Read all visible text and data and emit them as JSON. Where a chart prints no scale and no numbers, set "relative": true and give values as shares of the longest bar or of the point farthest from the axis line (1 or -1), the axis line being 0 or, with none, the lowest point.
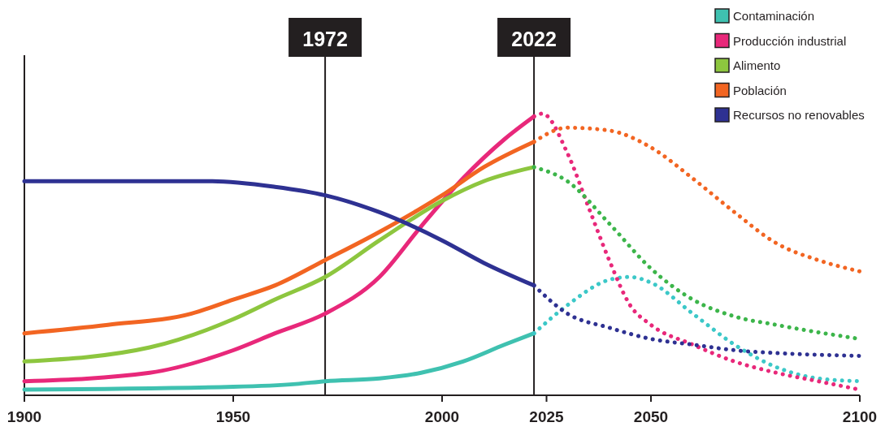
{
  "chart_data": {
    "type": "line",
    "relative": true,
    "xlim": [
      1900,
      2100
    ],
    "xticks": [
      1900,
      1950,
      2000,
      2025,
      2050,
      2100
    ],
    "legend": "top right",
    "grid": false,
    "ref_lines": [
      {
        "axis": "x",
        "value": 1972,
        "label": "1972",
        "color": "#231f20"
      },
      {
        "axis": "x",
        "value": 2022,
        "label": "2022",
        "color": "#231f20"
      }
    ],
    "series": [
      {
        "name": "Contaminación",
        "color": "#3fc1b0",
        "line_style": "solid",
        "x": [
          1900,
          1950,
          1965,
          1972,
          1985,
          1995,
          2005,
          2015,
          2022
        ],
        "values": [
          0.02,
          0.03,
          0.04,
          0.05,
          0.06,
          0.08,
          0.12,
          0.18,
          0.22
        ]
      },
      {
        "name": "Producción industrial",
        "color": "#e8287a",
        "line_style": "solid",
        "x": [
          1900,
          1930,
          1950,
          1960,
          1972,
          1985,
          1995,
          2005,
          2015,
          2022
        ],
        "values": [
          0.05,
          0.08,
          0.16,
          0.22,
          0.29,
          0.42,
          0.6,
          0.77,
          0.91,
          0.99
        ]
      },
      {
        "name": "Alimento",
        "color": "#8dc63f",
        "line_style": "solid",
        "x": [
          1900,
          1930,
          1950,
          1960,
          1972,
          1985,
          2000,
          2010,
          2022
        ],
        "values": [
          0.12,
          0.17,
          0.27,
          0.34,
          0.42,
          0.55,
          0.69,
          0.76,
          0.81
        ]
      },
      {
        "name": "Población",
        "color": "#f26522",
        "line_style": "solid",
        "x": [
          1900,
          1920,
          1940,
          1950,
          1960,
          1972,
          1985,
          2000,
          2010,
          2022
        ],
        "values": [
          0.22,
          0.25,
          0.29,
          0.34,
          0.39,
          0.48,
          0.58,
          0.71,
          0.81,
          0.9
        ]
      },
      {
        "name": "Recursos no renovables",
        "color": "#2e3192",
        "line_style": "solid",
        "x": [
          1900,
          1930,
          1945,
          1960,
          1972,
          1985,
          2000,
          2010,
          2022
        ],
        "values": [
          0.76,
          0.76,
          0.76,
          0.74,
          0.71,
          0.65,
          0.55,
          0.47,
          0.39
        ]
      },
      {
        "color": "#3cc8c8",
        "line_style": "dotted",
        "x": [
          2022,
          2030,
          2040,
          2045,
          2050,
          2060,
          2070,
          2080,
          2090,
          2100
        ],
        "values": [
          0.22,
          0.32,
          0.41,
          0.42,
          0.4,
          0.29,
          0.18,
          0.1,
          0.06,
          0.05
        ]
      },
      {
        "color": "#e8287a",
        "line_style": "dotted",
        "x": [
          2022,
          2024,
          2030,
          2035,
          2040,
          2045,
          2050,
          2060,
          2070,
          2080,
          2090,
          2100
        ],
        "values": [
          0.99,
          1,
          0.86,
          0.67,
          0.48,
          0.32,
          0.25,
          0.18,
          0.12,
          0.08,
          0.05,
          0.02
        ]
      },
      {
        "color": "#3cb54a",
        "line_style": "dotted",
        "x": [
          2022,
          2030,
          2040,
          2050,
          2060,
          2070,
          2080,
          2100
        ],
        "values": [
          0.81,
          0.76,
          0.61,
          0.45,
          0.34,
          0.28,
          0.25,
          0.2
        ]
      },
      {
        "color": "#f26522",
        "line_style": "dotted",
        "x": [
          2022,
          2030,
          2040,
          2050,
          2060,
          2070,
          2080,
          2090,
          2100
        ],
        "values": [
          0.9,
          0.95,
          0.94,
          0.88,
          0.77,
          0.65,
          0.54,
          0.48,
          0.44
        ]
      },
      {
        "color": "#2e3192",
        "line_style": "dotted",
        "x": [
          2022,
          2030,
          2040,
          2050,
          2060,
          2070,
          2080,
          2100
        ],
        "values": [
          0.39,
          0.29,
          0.24,
          0.2,
          0.18,
          0.16,
          0.15,
          0.14
        ]
      }
    ]
  }
}
